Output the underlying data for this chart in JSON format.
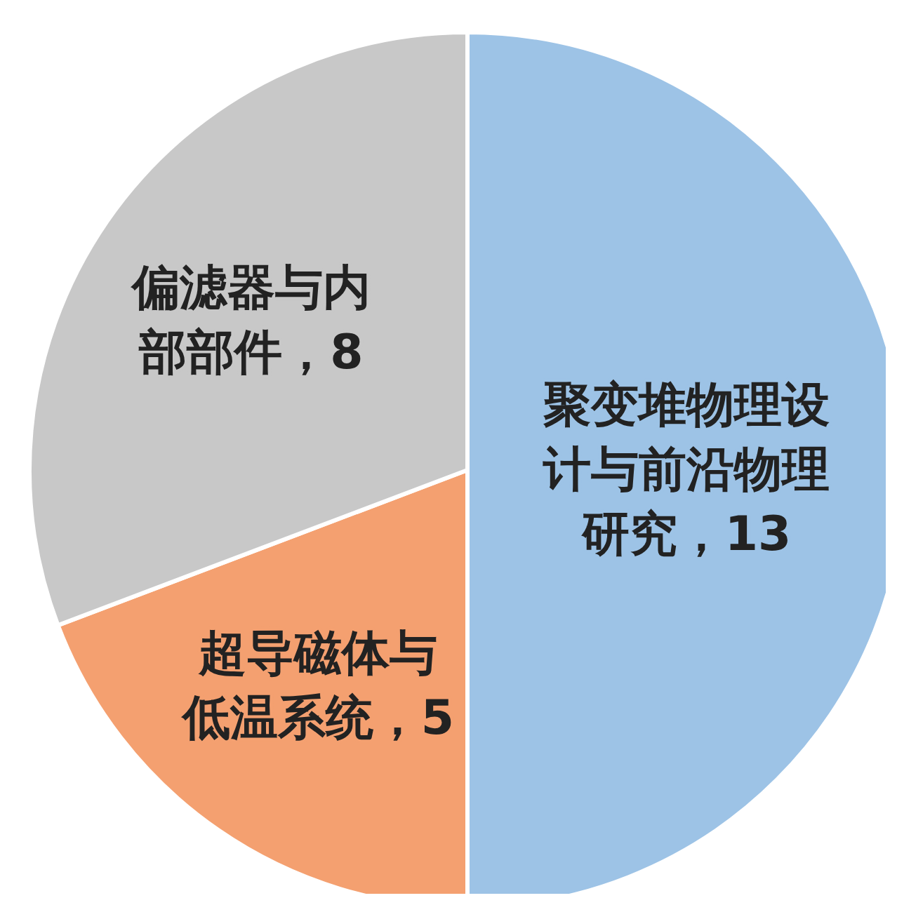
{
  "chart_data": {
    "type": "pie",
    "categories": [
      "聚变堆物理设计与前沿物理研究",
      "超导磁体与低温系统",
      "偏滤器与内部部件"
    ],
    "values": [
      13,
      5,
      8
    ],
    "colors": [
      "#9dc3e6",
      "#f4a070",
      "#c8c8c8"
    ],
    "value_labels": [
      "13",
      "5",
      "8"
    ],
    "legend": false
  }
}
